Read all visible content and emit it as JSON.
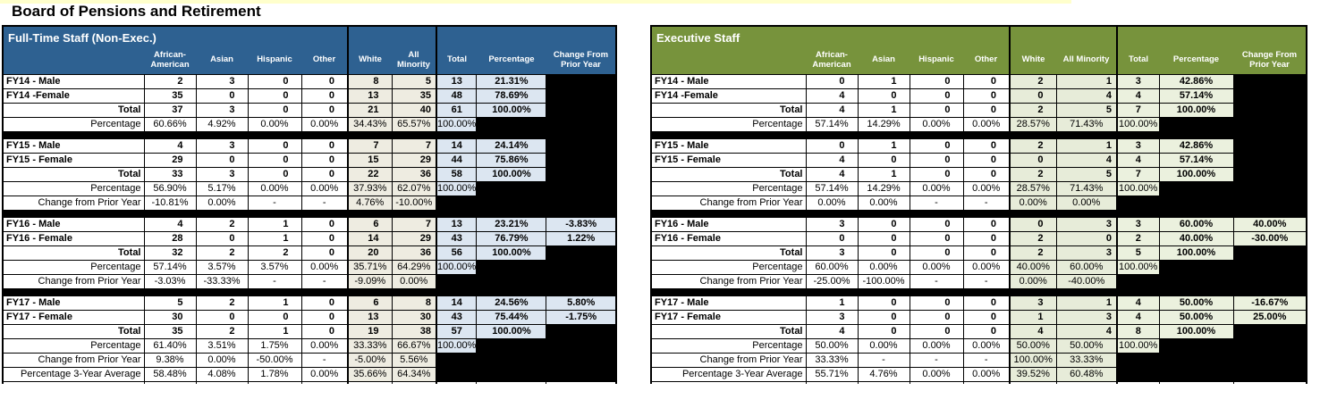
{
  "page": {
    "title": "Board of Pensions and Retirement",
    "top_strip_color": "#ffffcc"
  },
  "columns": [
    "African-American",
    "Asian",
    "Hispanic",
    "Other",
    "White",
    "All Minority",
    "Total",
    "Percentage",
    "Change From Prior Year"
  ],
  "tables": [
    {
      "title": "Full-Time Staff (Non-Exec.)",
      "theme": {
        "header_bg": "#2e6191",
        "group_bg": "#eeece1",
        "total_bg": "#dce6f1"
      },
      "blocks": [
        {
          "rows": [
            {
              "label": "FY14 - Male",
              "type": "data",
              "cells": [
                "2",
                "3",
                "0",
                "0",
                "8",
                "5",
                "13",
                "21.31%",
                ""
              ]
            },
            {
              "label": "FY14 -Female",
              "type": "data",
              "cells": [
                "35",
                "0",
                "0",
                "0",
                "13",
                "35",
                "48",
                "78.69%",
                ""
              ]
            },
            {
              "label": "Total",
              "type": "total",
              "cells": [
                "37",
                "3",
                "0",
                "0",
                "21",
                "40",
                "61",
                "100.00%",
                ""
              ]
            },
            {
              "label": "Percentage",
              "type": "pct",
              "cells": [
                "60.66%",
                "4.92%",
                "0.00%",
                "0.00%",
                "34.43%",
                "65.57%",
                "100.00%",
                "",
                ""
              ]
            }
          ]
        },
        {
          "rows": [
            {
              "label": "FY15 - Male",
              "type": "data",
              "cells": [
                "4",
                "3",
                "0",
                "0",
                "7",
                "7",
                "14",
                "24.14%",
                ""
              ]
            },
            {
              "label": "FY15 - Female",
              "type": "data",
              "cells": [
                "29",
                "0",
                "0",
                "0",
                "15",
                "29",
                "44",
                "75.86%",
                ""
              ]
            },
            {
              "label": "Total",
              "type": "total",
              "cells": [
                "33",
                "3",
                "0",
                "0",
                "22",
                "36",
                "58",
                "100.00%",
                ""
              ]
            },
            {
              "label": "Percentage",
              "type": "pct",
              "cells": [
                "56.90%",
                "5.17%",
                "0.00%",
                "0.00%",
                "37.93%",
                "62.07%",
                "100.00%",
                "",
                ""
              ]
            },
            {
              "label": "Change from Prior Year",
              "type": "change",
              "cells": [
                "-10.81%",
                "0.00%",
                "-",
                "-",
                "4.76%",
                "-10.00%",
                "",
                "",
                ""
              ]
            }
          ]
        },
        {
          "rows": [
            {
              "label": "FY16 - Male",
              "type": "data",
              "cells": [
                "4",
                "2",
                "1",
                "0",
                "6",
                "7",
                "13",
                "23.21%",
                "-3.83%"
              ]
            },
            {
              "label": "FY16 - Female",
              "type": "data",
              "cells": [
                "28",
                "0",
                "1",
                "0",
                "14",
                "29",
                "43",
                "76.79%",
                "1.22%"
              ]
            },
            {
              "label": "Total",
              "type": "total",
              "cells": [
                "32",
                "2",
                "2",
                "0",
                "20",
                "36",
                "56",
                "100.00%",
                ""
              ]
            },
            {
              "label": "Percentage",
              "type": "pct",
              "cells": [
                "57.14%",
                "3.57%",
                "3.57%",
                "0.00%",
                "35.71%",
                "64.29%",
                "100.00%",
                "",
                ""
              ]
            },
            {
              "label": "Change from Prior Year",
              "type": "change",
              "cells": [
                "-3.03%",
                "-33.33%",
                "-",
                "-",
                "-9.09%",
                "0.00%",
                "",
                "",
                ""
              ]
            }
          ]
        },
        {
          "rows": [
            {
              "label": "FY17 - Male",
              "type": "data",
              "cells": [
                "5",
                "2",
                "1",
                "0",
                "6",
                "8",
                "14",
                "24.56%",
                "5.80%"
              ]
            },
            {
              "label": "FY17 - Female",
              "type": "data",
              "cells": [
                "30",
                "0",
                "0",
                "0",
                "13",
                "30",
                "43",
                "75.44%",
                "-1.75%"
              ]
            },
            {
              "label": "Total",
              "type": "total",
              "cells": [
                "35",
                "2",
                "1",
                "0",
                "19",
                "38",
                "57",
                "100.00%",
                ""
              ]
            },
            {
              "label": "Percentage",
              "type": "pct",
              "cells": [
                "61.40%",
                "3.51%",
                "1.75%",
                "0.00%",
                "33.33%",
                "66.67%",
                "100.00%",
                "",
                ""
              ]
            },
            {
              "label": "Change from Prior Year",
              "type": "change",
              "cells": [
                "9.38%",
                "0.00%",
                "-50.00%",
                "-",
                "-5.00%",
                "5.56%",
                "",
                "",
                ""
              ]
            },
            {
              "label": "Percentage 3-Year Average",
              "type": "avg",
              "cells": [
                "58.48%",
                "4.08%",
                "1.78%",
                "0.00%",
                "35.66%",
                "64.34%",
                "",
                "",
                ""
              ]
            }
          ]
        }
      ]
    },
    {
      "title": "Executive Staff",
      "theme": {
        "header_bg": "#77933c",
        "group_bg": "#e7ecd9",
        "total_bg": "#ebf1de"
      },
      "blocks": [
        {
          "rows": [
            {
              "label": "FY14 - Male",
              "type": "data",
              "cells": [
                "0",
                "1",
                "0",
                "0",
                "2",
                "1",
                "3",
                "42.86%",
                ""
              ]
            },
            {
              "label": "FY14 -Female",
              "type": "data",
              "cells": [
                "4",
                "0",
                "0",
                "0",
                "0",
                "4",
                "4",
                "57.14%",
                ""
              ]
            },
            {
              "label": "Total",
              "type": "total",
              "cells": [
                "4",
                "1",
                "0",
                "0",
                "2",
                "5",
                "7",
                "100.00%",
                ""
              ]
            },
            {
              "label": "Percentage",
              "type": "pct",
              "cells": [
                "57.14%",
                "14.29%",
                "0.00%",
                "0.00%",
                "28.57%",
                "71.43%",
                "100.00%",
                "",
                ""
              ]
            }
          ]
        },
        {
          "rows": [
            {
              "label": "FY15 - Male",
              "type": "data",
              "cells": [
                "0",
                "1",
                "0",
                "0",
                "2",
                "1",
                "3",
                "42.86%",
                ""
              ]
            },
            {
              "label": "FY15 - Female",
              "type": "data",
              "cells": [
                "4",
                "0",
                "0",
                "0",
                "0",
                "4",
                "4",
                "57.14%",
                ""
              ]
            },
            {
              "label": "Total",
              "type": "total",
              "cells": [
                "4",
                "1",
                "0",
                "0",
                "2",
                "5",
                "7",
                "100.00%",
                ""
              ]
            },
            {
              "label": "Percentage",
              "type": "pct",
              "cells": [
                "57.14%",
                "14.29%",
                "0.00%",
                "0.00%",
                "28.57%",
                "71.43%",
                "100.00%",
                "",
                ""
              ]
            },
            {
              "label": "Change from Prior Year",
              "type": "change",
              "cells": [
                "0.00%",
                "0.00%",
                "-",
                "-",
                "0.00%",
                "0.00%",
                "",
                "",
                ""
              ]
            }
          ]
        },
        {
          "rows": [
            {
              "label": "FY16 - Male",
              "type": "data",
              "cells": [
                "3",
                "0",
                "0",
                "0",
                "0",
                "3",
                "3",
                "60.00%",
                "40.00%"
              ]
            },
            {
              "label": "FY16 - Female",
              "type": "data",
              "cells": [
                "0",
                "0",
                "0",
                "0",
                "2",
                "0",
                "2",
                "40.00%",
                "-30.00%"
              ]
            },
            {
              "label": "Total",
              "type": "total",
              "cells": [
                "3",
                "0",
                "0",
                "0",
                "2",
                "3",
                "5",
                "100.00%",
                ""
              ]
            },
            {
              "label": "Percentage",
              "type": "pct",
              "cells": [
                "60.00%",
                "0.00%",
                "0.00%",
                "0.00%",
                "40.00%",
                "60.00%",
                "100.00%",
                "",
                ""
              ]
            },
            {
              "label": "Change from Prior Year",
              "type": "change",
              "cells": [
                "-25.00%",
                "-100.00%",
                "-",
                "-",
                "0.00%",
                "-40.00%",
                "",
                "",
                ""
              ]
            }
          ]
        },
        {
          "rows": [
            {
              "label": "FY17 - Male",
              "type": "data",
              "cells": [
                "1",
                "0",
                "0",
                "0",
                "3",
                "1",
                "4",
                "50.00%",
                "-16.67%"
              ]
            },
            {
              "label": "FY17 - Female",
              "type": "data",
              "cells": [
                "3",
                "0",
                "0",
                "0",
                "1",
                "3",
                "4",
                "50.00%",
                "25.00%"
              ]
            },
            {
              "label": "Total",
              "type": "total",
              "cells": [
                "4",
                "0",
                "0",
                "0",
                "4",
                "4",
                "8",
                "100.00%",
                ""
              ]
            },
            {
              "label": "Percentage",
              "type": "pct",
              "cells": [
                "50.00%",
                "0.00%",
                "0.00%",
                "0.00%",
                "50.00%",
                "50.00%",
                "100.00%",
                "",
                ""
              ]
            },
            {
              "label": "Change from Prior Year",
              "type": "change",
              "cells": [
                "33.33%",
                "-",
                "-",
                "-",
                "100.00%",
                "33.33%",
                "",
                "",
                ""
              ]
            },
            {
              "label": "Percentage 3-Year Average",
              "type": "avg",
              "cells": [
                "55.71%",
                "4.76%",
                "0.00%",
                "0.00%",
                "39.52%",
                "60.48%",
                "",
                "",
                ""
              ]
            }
          ]
        }
      ]
    }
  ]
}
